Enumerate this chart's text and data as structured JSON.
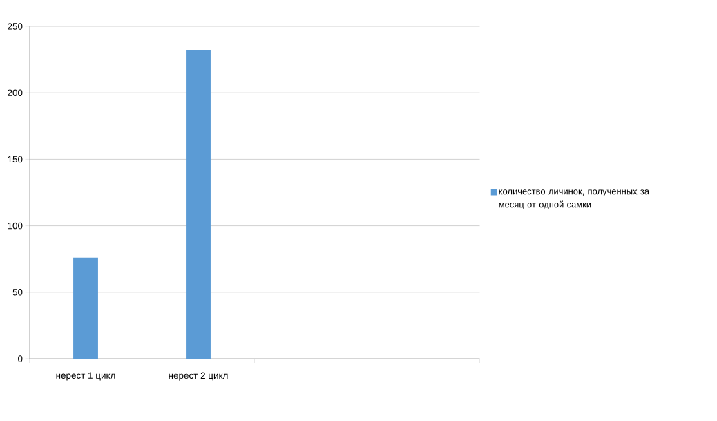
{
  "chart_data": {
    "type": "bar",
    "categories": [
      "нерест 1 цикл",
      "нерест 2 цикл",
      null,
      null
    ],
    "series": [
      {
        "name": "количество личинок, полученных за месяц от одной самки",
        "color": "#5b9bd5",
        "values": [
          76,
          232,
          null,
          null
        ]
      }
    ],
    "ylim": [
      0,
      250
    ],
    "yticks": [
      0,
      50,
      100,
      150,
      200,
      250
    ],
    "grid": "y",
    "legend": "right"
  }
}
